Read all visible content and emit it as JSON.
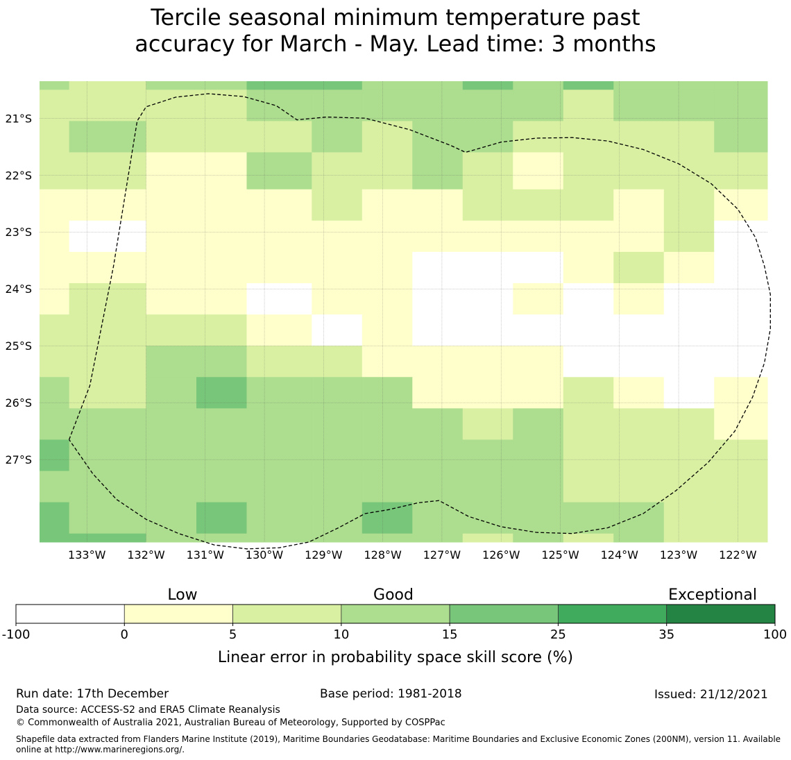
{
  "title": {
    "line1": "Tercile seasonal minimum temperature past",
    "line2": "accuracy for March - May. Lead time: 3 months"
  },
  "axes": {
    "lat_labels": [
      "21°S",
      "22°S",
      "23°S",
      "24°S",
      "25°S",
      "26°S",
      "27°S"
    ],
    "lon_labels": [
      "133°W",
      "132°W",
      "131°W",
      "130°W",
      "129°W",
      "128°W",
      "127°W",
      "126°W",
      "125°W",
      "124°W",
      "123°W",
      "122°W"
    ]
  },
  "grid": {
    "lon_edges": [
      -133.8,
      -133.3,
      -132.0,
      -131.15,
      -130.3,
      -129.2,
      -128.35,
      -127.5,
      -126.65,
      -125.8,
      -124.95,
      -124.1,
      -123.25,
      -122.4,
      -121.5
    ],
    "lat_edges": [
      -20.35,
      -20.5,
      -21.05,
      -21.6,
      -22.25,
      -22.8,
      -23.35,
      -23.9,
      -24.45,
      -25.0,
      -25.55,
      -26.1,
      -26.65,
      -27.2,
      -27.75,
      -28.3,
      -28.45
    ],
    "cells": [
      [
        3,
        2,
        3,
        3,
        4,
        4,
        3,
        3,
        4,
        3,
        4,
        3,
        3,
        3
      ],
      [
        2,
        2,
        2,
        2,
        3,
        3,
        3,
        3,
        3,
        3,
        2,
        3,
        3,
        3
      ],
      [
        2,
        3,
        2,
        2,
        2,
        3,
        2,
        3,
        3,
        2,
        2,
        2,
        2,
        3
      ],
      [
        2,
        2,
        1,
        1,
        3,
        2,
        2,
        3,
        2,
        1,
        2,
        2,
        2,
        2
      ],
      [
        1,
        1,
        1,
        1,
        1,
        2,
        1,
        1,
        2,
        2,
        2,
        1,
        2,
        1
      ],
      [
        1,
        0,
        1,
        1,
        1,
        1,
        1,
        1,
        1,
        1,
        1,
        1,
        2,
        0
      ],
      [
        1,
        1,
        1,
        1,
        1,
        1,
        1,
        0,
        0,
        0,
        1,
        2,
        1,
        0
      ],
      [
        1,
        2,
        1,
        1,
        0,
        1,
        1,
        0,
        0,
        1,
        0,
        1,
        0,
        0
      ],
      [
        2,
        2,
        2,
        2,
        1,
        0,
        1,
        0,
        0,
        0,
        0,
        0,
        0,
        0
      ],
      [
        2,
        2,
        3,
        3,
        2,
        2,
        1,
        1,
        1,
        1,
        0,
        0,
        0,
        0
      ],
      [
        3,
        2,
        3,
        4,
        3,
        3,
        3,
        1,
        1,
        1,
        2,
        1,
        0,
        1
      ],
      [
        3,
        3,
        3,
        3,
        3,
        3,
        3,
        3,
        2,
        3,
        2,
        2,
        2,
        1
      ],
      [
        4,
        3,
        3,
        3,
        3,
        3,
        3,
        3,
        3,
        3,
        2,
        2,
        2,
        2
      ],
      [
        3,
        3,
        3,
        3,
        3,
        3,
        3,
        3,
        3,
        3,
        2,
        2,
        2,
        2
      ],
      [
        4,
        3,
        3,
        4,
        3,
        3,
        4,
        3,
        3,
        3,
        3,
        3,
        2,
        2
      ],
      [
        4,
        4,
        3,
        3,
        3,
        3,
        3,
        3,
        2,
        3,
        2,
        3,
        2,
        2
      ]
    ]
  },
  "eez_boundary": [
    [
      -133.3,
      -26.65
    ],
    [
      -132.95,
      -25.7
    ],
    [
      -132.55,
      -23.6
    ],
    [
      -132.15,
      -21.05
    ],
    [
      -132.0,
      -20.8
    ],
    [
      -131.5,
      -20.63
    ],
    [
      -130.95,
      -20.57
    ],
    [
      -130.35,
      -20.62
    ],
    [
      -129.8,
      -20.78
    ],
    [
      -129.45,
      -21.03
    ],
    [
      -128.95,
      -20.98
    ],
    [
      -128.3,
      -21.0
    ],
    [
      -127.55,
      -21.2
    ],
    [
      -126.85,
      -21.48
    ],
    [
      -126.6,
      -21.6
    ],
    [
      -126.0,
      -21.42
    ],
    [
      -125.4,
      -21.35
    ],
    [
      -124.8,
      -21.34
    ],
    [
      -124.2,
      -21.4
    ],
    [
      -123.6,
      -21.55
    ],
    [
      -123.0,
      -21.8
    ],
    [
      -122.45,
      -22.15
    ],
    [
      -122.0,
      -22.6
    ],
    [
      -121.7,
      -23.1
    ],
    [
      -121.55,
      -23.6
    ],
    [
      -121.45,
      -24.1
    ],
    [
      -121.45,
      -24.7
    ],
    [
      -121.55,
      -25.3
    ],
    [
      -121.75,
      -25.9
    ],
    [
      -122.05,
      -26.5
    ],
    [
      -122.5,
      -27.05
    ],
    [
      -123.05,
      -27.55
    ],
    [
      -123.6,
      -27.95
    ],
    [
      -124.2,
      -28.2
    ],
    [
      -124.8,
      -28.3
    ],
    [
      -125.4,
      -28.28
    ],
    [
      -126.0,
      -28.18
    ],
    [
      -126.55,
      -28.0
    ],
    [
      -127.05,
      -27.72
    ],
    [
      -127.4,
      -27.76
    ],
    [
      -127.9,
      -27.88
    ],
    [
      -128.3,
      -27.95
    ],
    [
      -128.75,
      -28.2
    ],
    [
      -129.25,
      -28.45
    ],
    [
      -129.75,
      -28.55
    ],
    [
      -130.3,
      -28.57
    ],
    [
      -130.85,
      -28.5
    ],
    [
      -131.45,
      -28.3
    ],
    [
      -132.0,
      -28.05
    ],
    [
      -132.5,
      -27.7
    ],
    [
      -132.9,
      -27.25
    ],
    [
      -133.3,
      -26.65
    ]
  ],
  "colorbar": {
    "bounds": [
      "-100",
      "0",
      "5",
      "10",
      "15",
      "25",
      "35",
      "100"
    ],
    "colors": [
      "#ffffff",
      "#ffffcc",
      "#d9f0a3",
      "#addd8e",
      "#78c679",
      "#41ab5d",
      "#238443"
    ],
    "categories": [
      "Low",
      "Good",
      "Exceptional"
    ],
    "label": "Linear error in probability space skill score (%)"
  },
  "footer": {
    "run_date": "Run date: 17th December",
    "base_period": "Base period: 1981-2018",
    "issued": "Issued: 21/12/2021",
    "data_source": "Data source: ACCESS-S2 and ERA5 Climate Reanalysis",
    "copyright": "© Commonwealth of Australia 2021, Australian Bureau of Meteorology, Supported by COSPPac",
    "shapefile": "Shapefile data extracted from Flanders Marine Institute (2019), Maritime Boundaries Geodatabase: Maritime Boundaries and Exclusive Economic Zones (200NM), version 11. Available online at http://www.marineregions.org/."
  }
}
